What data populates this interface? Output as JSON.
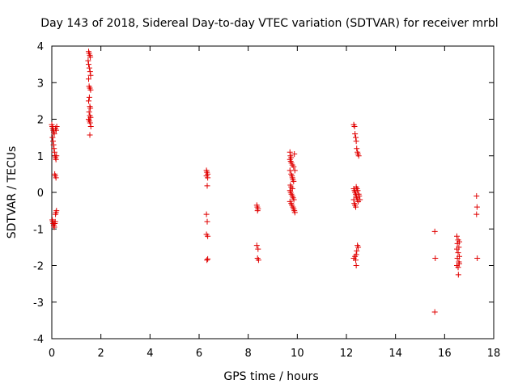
{
  "chart_data": {
    "type": "scatter",
    "title": "Day 143 of 2018, Sidereal Day-to-day VTEC variation (SDTVAR) for receiver mrbl",
    "xlabel": "GPS time / hours",
    "ylabel": "SDTVAR / TECUs",
    "xlim": [
      0,
      18
    ],
    "ylim": [
      -4,
      4
    ],
    "xticks": [
      0,
      2,
      4,
      6,
      8,
      10,
      12,
      14,
      16,
      18
    ],
    "yticks": [
      -4,
      -3,
      -2,
      -1,
      0,
      1,
      2,
      3,
      4
    ],
    "grid": false,
    "legend": "none",
    "marker": "+",
    "color": "#e00000",
    "series": [
      {
        "name": "SDTVAR",
        "points": [
          [
            0.0,
            1.85
          ],
          [
            0.02,
            1.8
          ],
          [
            0.04,
            1.75
          ],
          [
            0.06,
            1.7
          ],
          [
            0.08,
            1.65
          ],
          [
            0.1,
            1.6
          ],
          [
            0.03,
            1.5
          ],
          [
            0.05,
            1.4
          ],
          [
            0.07,
            1.3
          ],
          [
            0.09,
            1.2
          ],
          [
            0.11,
            1.1
          ],
          [
            0.13,
            1.0
          ],
          [
            0.15,
            0.95
          ],
          [
            0.17,
            0.9
          ],
          [
            0.19,
            1.0
          ],
          [
            0.12,
            0.5
          ],
          [
            0.14,
            0.45
          ],
          [
            0.17,
            0.4
          ],
          [
            0.15,
            1.75
          ],
          [
            0.18,
            1.7
          ],
          [
            0.2,
            1.8
          ],
          [
            0.02,
            -0.75
          ],
          [
            0.04,
            -0.8
          ],
          [
            0.06,
            -0.85
          ],
          [
            0.08,
            -0.9
          ],
          [
            0.1,
            -0.95
          ],
          [
            0.12,
            -0.85
          ],
          [
            0.14,
            -0.8
          ],
          [
            0.15,
            -0.6
          ],
          [
            0.17,
            -0.55
          ],
          [
            0.19,
            -0.5
          ],
          [
            1.5,
            3.85
          ],
          [
            1.52,
            3.8
          ],
          [
            1.55,
            3.75
          ],
          [
            1.57,
            3.7
          ],
          [
            1.48,
            3.6
          ],
          [
            1.5,
            3.5
          ],
          [
            1.53,
            3.4
          ],
          [
            1.56,
            3.3
          ],
          [
            1.58,
            3.2
          ],
          [
            1.5,
            3.1
          ],
          [
            1.52,
            2.9
          ],
          [
            1.55,
            2.85
          ],
          [
            1.58,
            2.8
          ],
          [
            1.53,
            2.6
          ],
          [
            1.5,
            2.5
          ],
          [
            1.55,
            2.35
          ],
          [
            1.57,
            2.3
          ],
          [
            1.52,
            2.2
          ],
          [
            1.55,
            2.1
          ],
          [
            1.58,
            2.05
          ],
          [
            1.5,
            2.0
          ],
          [
            1.53,
            1.95
          ],
          [
            1.56,
            1.9
          ],
          [
            1.59,
            1.8
          ],
          [
            1.55,
            1.57
          ],
          [
            6.3,
            0.6
          ],
          [
            6.32,
            0.55
          ],
          [
            6.35,
            0.5
          ],
          [
            6.3,
            0.45
          ],
          [
            6.35,
            0.4
          ],
          [
            6.33,
            0.18
          ],
          [
            6.3,
            -0.6
          ],
          [
            6.33,
            -0.8
          ],
          [
            6.3,
            -1.15
          ],
          [
            6.35,
            -1.2
          ],
          [
            6.32,
            -1.85
          ],
          [
            6.35,
            -1.82
          ],
          [
            8.35,
            -0.35
          ],
          [
            8.37,
            -0.4
          ],
          [
            8.4,
            -0.45
          ],
          [
            8.38,
            -0.5
          ],
          [
            8.35,
            -1.45
          ],
          [
            8.4,
            -1.55
          ],
          [
            8.38,
            -1.8
          ],
          [
            8.42,
            -1.85
          ],
          [
            9.7,
            1.1
          ],
          [
            9.72,
            1.0
          ],
          [
            9.75,
            0.95
          ],
          [
            9.7,
            0.9
          ],
          [
            9.73,
            0.85
          ],
          [
            9.76,
            0.8
          ],
          [
            9.8,
            0.75
          ],
          [
            9.85,
            0.7
          ],
          [
            9.7,
            0.6
          ],
          [
            9.75,
            0.5
          ],
          [
            9.78,
            0.45
          ],
          [
            9.8,
            0.4
          ],
          [
            9.82,
            0.35
          ],
          [
            9.85,
            0.3
          ],
          [
            9.72,
            0.2
          ],
          [
            9.75,
            0.15
          ],
          [
            9.8,
            0.1
          ],
          [
            9.7,
            0.05
          ],
          [
            9.73,
            0.0
          ],
          [
            9.76,
            -0.05
          ],
          [
            9.8,
            -0.1
          ],
          [
            9.83,
            -0.15
          ],
          [
            9.86,
            -0.2
          ],
          [
            9.7,
            -0.25
          ],
          [
            9.75,
            -0.3
          ],
          [
            9.78,
            -0.35
          ],
          [
            9.82,
            -0.4
          ],
          [
            9.85,
            -0.45
          ],
          [
            9.88,
            -0.5
          ],
          [
            9.9,
            -0.55
          ],
          [
            9.88,
            1.05
          ],
          [
            9.9,
            0.6
          ],
          [
            12.3,
            1.85
          ],
          [
            12.33,
            1.8
          ],
          [
            12.35,
            1.6
          ],
          [
            12.38,
            1.5
          ],
          [
            12.4,
            1.4
          ],
          [
            12.42,
            1.2
          ],
          [
            12.45,
            1.1
          ],
          [
            12.47,
            1.05
          ],
          [
            12.5,
            1.0
          ],
          [
            12.3,
            0.1
          ],
          [
            12.33,
            0.05
          ],
          [
            12.35,
            0.0
          ],
          [
            12.38,
            -0.05
          ],
          [
            12.4,
            -0.1
          ],
          [
            12.42,
            -0.15
          ],
          [
            12.45,
            -0.2
          ],
          [
            12.48,
            -0.25
          ],
          [
            12.32,
            -0.3
          ],
          [
            12.35,
            -0.35
          ],
          [
            12.38,
            -0.4
          ],
          [
            12.4,
            0.15
          ],
          [
            12.43,
            0.1
          ],
          [
            12.46,
            0.05
          ],
          [
            12.5,
            -0.05
          ],
          [
            12.52,
            -0.1
          ],
          [
            12.55,
            -0.2
          ],
          [
            12.3,
            -0.2
          ],
          [
            12.45,
            -1.45
          ],
          [
            12.48,
            -1.5
          ],
          [
            12.42,
            -1.6
          ],
          [
            12.4,
            -1.7
          ],
          [
            12.35,
            -1.75
          ],
          [
            12.3,
            -1.8
          ],
          [
            12.38,
            -1.85
          ],
          [
            12.4,
            -2.0
          ],
          [
            15.6,
            -1.07
          ],
          [
            15.62,
            -1.8
          ],
          [
            15.6,
            -3.27
          ],
          [
            16.5,
            -1.2
          ],
          [
            16.55,
            -1.3
          ],
          [
            16.6,
            -1.35
          ],
          [
            16.52,
            -1.4
          ],
          [
            16.58,
            -1.5
          ],
          [
            16.5,
            -1.55
          ],
          [
            16.55,
            -1.65
          ],
          [
            16.6,
            -1.75
          ],
          [
            16.52,
            -1.8
          ],
          [
            16.58,
            -1.9
          ],
          [
            16.5,
            -2.0
          ],
          [
            16.55,
            -2.05
          ],
          [
            16.6,
            -1.95
          ],
          [
            16.56,
            -2.25
          ],
          [
            17.3,
            -0.1
          ],
          [
            17.32,
            -0.4
          ],
          [
            17.3,
            -0.6
          ],
          [
            17.33,
            -1.8
          ]
        ]
      }
    ]
  }
}
